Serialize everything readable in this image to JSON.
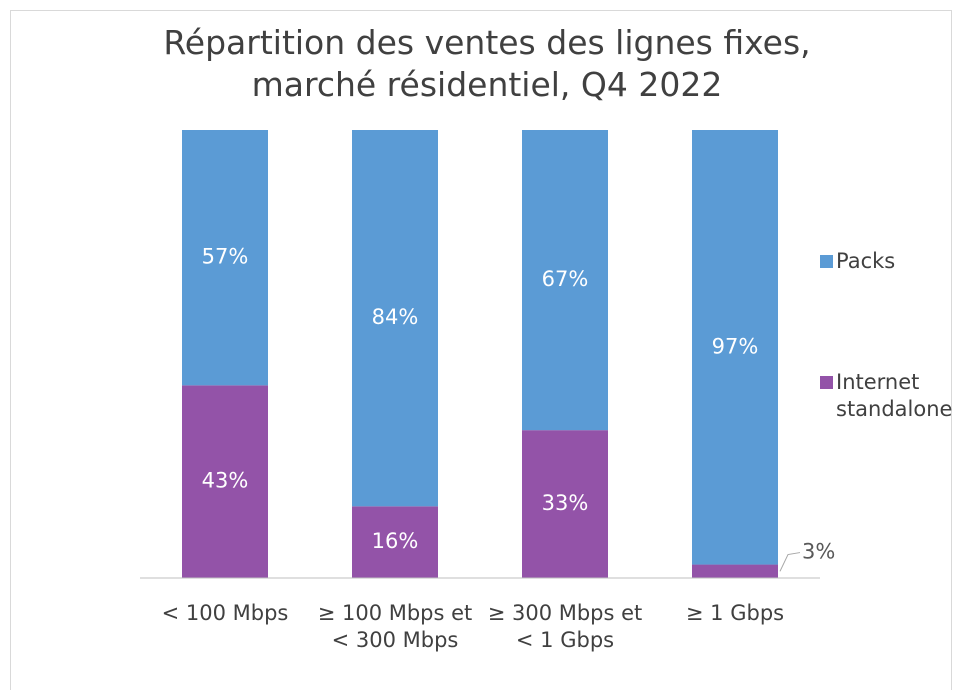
{
  "chart_data": {
    "type": "stacked_bar",
    "title": "Répartition des ventes des lignes fixes, marché résidentiel, Q4 2022",
    "categories": [
      "< 100 Mbps",
      "≥ 100 Mbps et < 300 Mbps",
      "≥ 300 Mbps et < 1 Gbps",
      "≥ 1 Gbps"
    ],
    "series": [
      {
        "name": "Internet standalone",
        "color": "#9353a8",
        "values": [
          43,
          16,
          33,
          3
        ],
        "value_labels": [
          "43%",
          "16%",
          "33%",
          "3%"
        ]
      },
      {
        "name": "Packs",
        "color": "#5b9bd5",
        "values": [
          57,
          84,
          67,
          97
        ],
        "value_labels": [
          "57%",
          "84%",
          "67%",
          "97%"
        ]
      }
    ],
    "ylim": [
      0,
      100
    ],
    "legend": "right"
  }
}
